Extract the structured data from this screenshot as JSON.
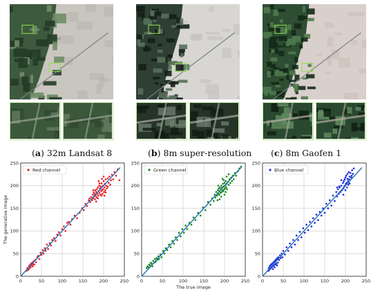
{
  "figure": {
    "panels": [
      {
        "letter": "a",
        "label": "32m Landsat 8"
      },
      {
        "letter": "b",
        "label": "8m super-resolution"
      },
      {
        "letter": "c",
        "label": "8m Gaofen 1"
      }
    ]
  },
  "chart_data": [
    {
      "type": "scatter",
      "legend": "Red channel",
      "legend_position": "top-left",
      "color": "#e8222a",
      "xlabel": "",
      "ylabel": "The generative image",
      "xlim": [
        0,
        250
      ],
      "ylim": [
        0,
        250
      ],
      "xticks": [
        0,
        50,
        100,
        150,
        200,
        250
      ],
      "yticks": [
        0,
        50,
        100,
        150,
        200,
        250
      ],
      "fit_line": [
        [
          0,
          0
        ],
        [
          240,
          240
        ]
      ],
      "grid": true,
      "points": [
        [
          14,
          12
        ],
        [
          16,
          18
        ],
        [
          18,
          14
        ],
        [
          20,
          22
        ],
        [
          21,
          17
        ],
        [
          22,
          25
        ],
        [
          24,
          20
        ],
        [
          25,
          28
        ],
        [
          27,
          24
        ],
        [
          28,
          30
        ],
        [
          29,
          22
        ],
        [
          30,
          27
        ],
        [
          31,
          33
        ],
        [
          33,
          26
        ],
        [
          35,
          36
        ],
        [
          37,
          31
        ],
        [
          40,
          42
        ],
        [
          42,
          45
        ],
        [
          45,
          38
        ],
        [
          48,
          52
        ],
        [
          50,
          47
        ],
        [
          53,
          58
        ],
        [
          55,
          50
        ],
        [
          58,
          62
        ],
        [
          60,
          56
        ],
        [
          63,
          70
        ],
        [
          66,
          60
        ],
        [
          70,
          73
        ],
        [
          73,
          68
        ],
        [
          76,
          80
        ],
        [
          80,
          84
        ],
        [
          84,
          78
        ],
        [
          88,
          92
        ],
        [
          92,
          97
        ],
        [
          96,
          90
        ],
        [
          100,
          104
        ],
        [
          104,
          110
        ],
        [
          108,
          100
        ],
        [
          112,
          118
        ],
        [
          116,
          120
        ],
        [
          120,
          114
        ],
        [
          124,
          126
        ],
        [
          130,
          134
        ],
        [
          136,
          128
        ],
        [
          142,
          140
        ],
        [
          148,
          150
        ],
        [
          152,
          146
        ],
        [
          156,
          160
        ],
        [
          160,
          155
        ],
        [
          164,
          168
        ],
        [
          166,
          172
        ],
        [
          168,
          164
        ],
        [
          170,
          175
        ],
        [
          172,
          168
        ],
        [
          174,
          180
        ],
        [
          175,
          172
        ],
        [
          176,
          185
        ],
        [
          177,
          176
        ],
        [
          178,
          182
        ],
        [
          179,
          170
        ],
        [
          180,
          190
        ],
        [
          181,
          178
        ],
        [
          182,
          186
        ],
        [
          183,
          174
        ],
        [
          184,
          192
        ],
        [
          185,
          182
        ],
        [
          186,
          196
        ],
        [
          187,
          178
        ],
        [
          188,
          188
        ],
        [
          189,
          200
        ],
        [
          190,
          184
        ],
        [
          191,
          194
        ],
        [
          192,
          180
        ],
        [
          193,
          198
        ],
        [
          194,
          188
        ],
        [
          195,
          205
        ],
        [
          196,
          190
        ],
        [
          197,
          182
        ],
        [
          198,
          200
        ],
        [
          199,
          192
        ],
        [
          200,
          210
        ],
        [
          201,
          186
        ],
        [
          202,
          196
        ],
        [
          203,
          204
        ],
        [
          204,
          190
        ],
        [
          205,
          214
        ],
        [
          206,
          200
        ],
        [
          208,
          194
        ],
        [
          210,
          216
        ],
        [
          212,
          206
        ],
        [
          214,
          220
        ],
        [
          216,
          202
        ],
        [
          218,
          212
        ],
        [
          220,
          224
        ],
        [
          223,
          214
        ],
        [
          226,
          230
        ],
        [
          230,
          222
        ],
        [
          234,
          236
        ],
        [
          238,
          212
        ],
        [
          186,
          172
        ],
        [
          190,
          205
        ],
        [
          195,
          178
        ],
        [
          200,
          220
        ],
        [
          205,
          185
        ],
        [
          210,
          198
        ],
        [
          175,
          190
        ],
        [
          182,
          165
        ],
        [
          188,
          210
        ],
        [
          196,
          215
        ],
        [
          202,
          178
        ]
      ]
    },
    {
      "type": "scatter",
      "legend": "Green channel",
      "legend_position": "top-left",
      "color": "#1b8a1b",
      "xlabel": "The true image",
      "ylabel": "",
      "xlim": [
        0,
        250
      ],
      "ylim": [
        0,
        250
      ],
      "xticks": [
        0,
        50,
        100,
        150,
        200,
        250
      ],
      "yticks": [
        0,
        50,
        100,
        150,
        200,
        250
      ],
      "fit_line": [
        [
          0,
          0
        ],
        [
          240,
          240
        ]
      ],
      "grid": true,
      "points": [
        [
          12,
          18
        ],
        [
          14,
          22
        ],
        [
          16,
          20
        ],
        [
          18,
          26
        ],
        [
          20,
          24
        ],
        [
          22,
          30
        ],
        [
          24,
          28
        ],
        [
          26,
          22
        ],
        [
          28,
          34
        ],
        [
          30,
          30
        ],
        [
          32,
          38
        ],
        [
          34,
          32
        ],
        [
          36,
          40
        ],
        [
          38,
          36
        ],
        [
          40,
          44
        ],
        [
          42,
          38
        ],
        [
          45,
          48
        ],
        [
          48,
          42
        ],
        [
          52,
          56
        ],
        [
          55,
          50
        ],
        [
          58,
          62
        ],
        [
          62,
          58
        ],
        [
          66,
          70
        ],
        [
          70,
          64
        ],
        [
          74,
          78
        ],
        [
          78,
          72
        ],
        [
          82,
          86
        ],
        [
          86,
          80
        ],
        [
          90,
          96
        ],
        [
          94,
          88
        ],
        [
          98,
          104
        ],
        [
          102,
          96
        ],
        [
          106,
          112
        ],
        [
          110,
          104
        ],
        [
          115,
          118
        ],
        [
          120,
          114
        ],
        [
          125,
          130
        ],
        [
          130,
          124
        ],
        [
          136,
          140
        ],
        [
          142,
          134
        ],
        [
          148,
          152
        ],
        [
          154,
          146
        ],
        [
          160,
          164
        ],
        [
          166,
          158
        ],
        [
          170,
          172
        ],
        [
          174,
          166
        ],
        [
          176,
          180
        ],
        [
          178,
          174
        ],
        [
          180,
          186
        ],
        [
          182,
          178
        ],
        [
          184,
          190
        ],
        [
          185,
          182
        ],
        [
          186,
          194
        ],
        [
          187,
          180
        ],
        [
          188,
          188
        ],
        [
          189,
          196
        ],
        [
          190,
          184
        ],
        [
          191,
          192
        ],
        [
          192,
          200
        ],
        [
          193,
          186
        ],
        [
          194,
          196
        ],
        [
          195,
          190
        ],
        [
          196,
          204
        ],
        [
          197,
          188
        ],
        [
          198,
          198
        ],
        [
          199,
          192
        ],
        [
          200,
          206
        ],
        [
          201,
          194
        ],
        [
          202,
          200
        ],
        [
          203,
          210
        ],
        [
          204,
          196
        ],
        [
          205,
          204
        ],
        [
          206,
          192
        ],
        [
          208,
          208
        ],
        [
          210,
          202
        ],
        [
          212,
          214
        ],
        [
          214,
          206
        ],
        [
          216,
          218
        ],
        [
          218,
          210
        ],
        [
          220,
          222
        ],
        [
          222,
          214
        ],
        [
          225,
          228
        ],
        [
          228,
          222
        ],
        [
          232,
          232
        ],
        [
          236,
          238
        ],
        [
          240,
          242
        ],
        [
          188,
          170
        ],
        [
          195,
          215
        ],
        [
          200,
          180
        ],
        [
          205,
          220
        ],
        [
          185,
          200
        ],
        [
          192,
          176
        ],
        [
          198,
          212
        ],
        [
          203,
          186
        ],
        [
          210,
          225
        ],
        [
          183,
          168
        ]
      ]
    },
    {
      "type": "scatter",
      "legend": "Blue channel",
      "legend_position": "top-left",
      "color": "#1f2fe0",
      "xlabel": "",
      "ylabel": "",
      "xlim": [
        0,
        250
      ],
      "ylim": [
        0,
        250
      ],
      "xticks": [
        0,
        50,
        100,
        150,
        200,
        250
      ],
      "yticks": [
        0,
        50,
        100,
        150,
        200,
        250
      ],
      "fit_line": [
        [
          0,
          0
        ],
        [
          240,
          240
        ]
      ],
      "grid": true,
      "points": [
        [
          14,
          12
        ],
        [
          15,
          18
        ],
        [
          16,
          14
        ],
        [
          17,
          22
        ],
        [
          18,
          16
        ],
        [
          19,
          24
        ],
        [
          20,
          18
        ],
        [
          21,
          26
        ],
        [
          22,
          20
        ],
        [
          23,
          28
        ],
        [
          24,
          22
        ],
        [
          25,
          16
        ],
        [
          26,
          30
        ],
        [
          27,
          24
        ],
        [
          28,
          32
        ],
        [
          29,
          20
        ],
        [
          30,
          34
        ],
        [
          31,
          26
        ],
        [
          32,
          36
        ],
        [
          33,
          28
        ],
        [
          34,
          38
        ],
        [
          35,
          24
        ],
        [
          36,
          40
        ],
        [
          37,
          30
        ],
        [
          38,
          42
        ],
        [
          40,
          36
        ],
        [
          42,
          46
        ],
        [
          44,
          40
        ],
        [
          46,
          50
        ],
        [
          48,
          42
        ],
        [
          50,
          56
        ],
        [
          54,
          48
        ],
        [
          58,
          64
        ],
        [
          62,
          56
        ],
        [
          66,
          72
        ],
        [
          70,
          64
        ],
        [
          74,
          80
        ],
        [
          78,
          70
        ],
        [
          82,
          90
        ],
        [
          86,
          80
        ],
        [
          90,
          98
        ],
        [
          94,
          86
        ],
        [
          98,
          106
        ],
        [
          102,
          96
        ],
        [
          106,
          114
        ],
        [
          110,
          102
        ],
        [
          114,
          120
        ],
        [
          118,
          110
        ],
        [
          122,
          128
        ],
        [
          126,
          118
        ],
        [
          130,
          136
        ],
        [
          134,
          124
        ],
        [
          138,
          142
        ],
        [
          142,
          134
        ],
        [
          146,
          150
        ],
        [
          150,
          140
        ],
        [
          154,
          160
        ],
        [
          158,
          150
        ],
        [
          162,
          168
        ],
        [
          166,
          156
        ],
        [
          170,
          178
        ],
        [
          174,
          166
        ],
        [
          178,
          186
        ],
        [
          180,
          176
        ],
        [
          182,
          192
        ],
        [
          184,
          182
        ],
        [
          186,
          196
        ],
        [
          188,
          186
        ],
        [
          190,
          200
        ],
        [
          192,
          190
        ],
        [
          194,
          206
        ],
        [
          195,
          194
        ],
        [
          196,
          210
        ],
        [
          197,
          198
        ],
        [
          198,
          214
        ],
        [
          199,
          200
        ],
        [
          200,
          218
        ],
        [
          201,
          204
        ],
        [
          202,
          222
        ],
        [
          203,
          206
        ],
        [
          204,
          196
        ],
        [
          205,
          226
        ],
        [
          206,
          210
        ],
        [
          207,
          202
        ],
        [
          208,
          230
        ],
        [
          209,
          214
        ],
        [
          210,
          220
        ],
        [
          212,
          228
        ],
        [
          214,
          218
        ],
        [
          216,
          234
        ],
        [
          218,
          226
        ],
        [
          220,
          238
        ],
        [
          190,
          212
        ],
        [
          185,
          198
        ],
        [
          200,
          190
        ],
        [
          205,
          215
        ],
        [
          195,
          180
        ],
        [
          210,
          205
        ],
        [
          180,
          196
        ],
        [
          215,
          222
        ]
      ]
    }
  ]
}
